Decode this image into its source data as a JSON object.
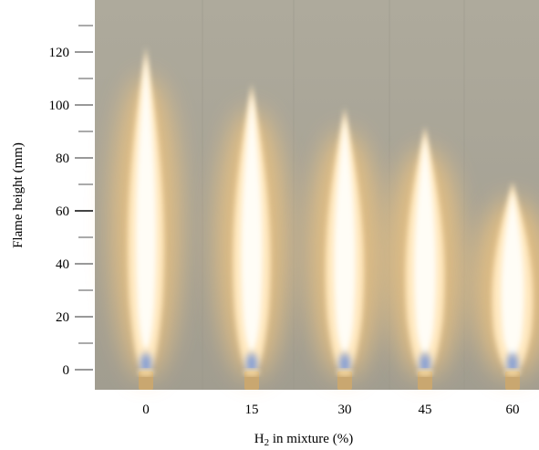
{
  "figure": {
    "ylabel": "Flame height (mm)",
    "xlabel_main": "H",
    "xlabel_sub": "2",
    "xlabel_rest": " in mixture (%)",
    "background_color": "#a8a496",
    "flame_core_color": "#fffdf6",
    "flame_glow_color": "#f5c77e",
    "flame_base_color": "#6d8fd8"
  },
  "y_axis": {
    "ticks": [
      "0",
      "20",
      "40",
      "60",
      "80",
      "100",
      "120"
    ],
    "tick_values": [
      0,
      20,
      40,
      60,
      80,
      100,
      120
    ],
    "minor_tick_values": [
      10,
      30,
      50,
      70,
      90,
      110,
      130
    ]
  },
  "x_axis": {
    "labels": [
      "0",
      "15",
      "30",
      "45",
      "60"
    ]
  },
  "flames": [
    {
      "h2_percent": 0,
      "height_mm": 122
    },
    {
      "h2_percent": 15,
      "height_mm": 108
    },
    {
      "h2_percent": 30,
      "height_mm": 99
    },
    {
      "h2_percent": 45,
      "height_mm": 92
    },
    {
      "h2_percent": 60,
      "height_mm": 71
    }
  ]
}
